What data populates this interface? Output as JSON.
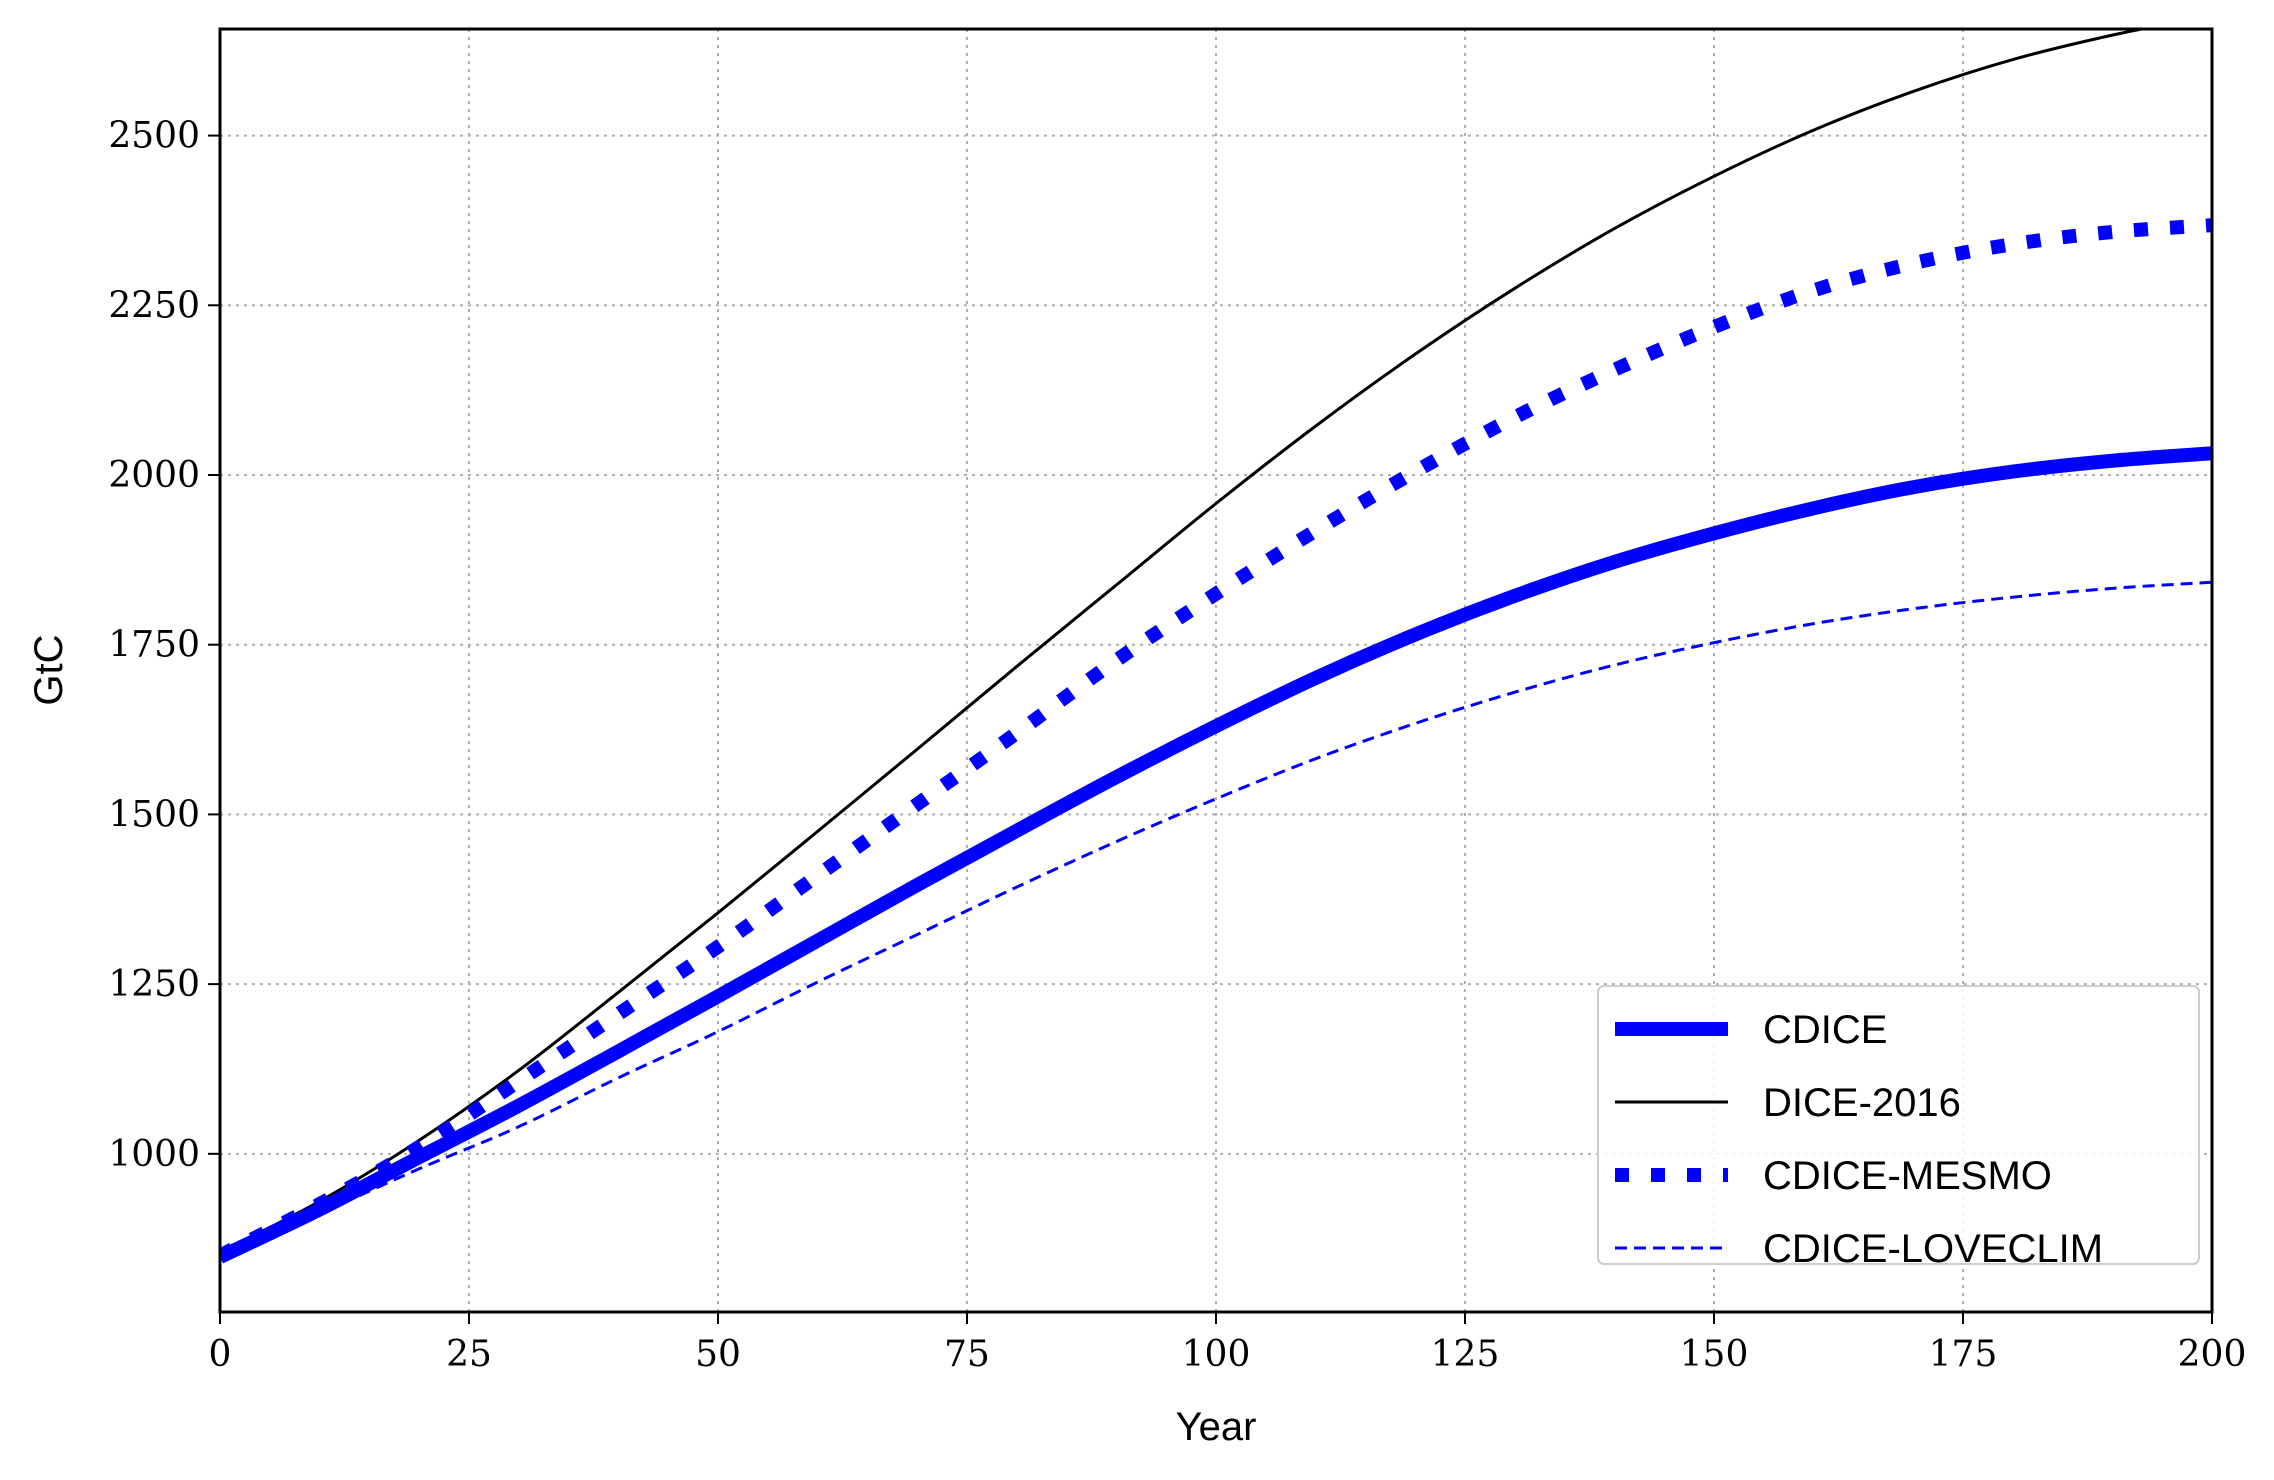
{
  "chart_data": {
    "type": "line",
    "title": "",
    "xlabel": "Year",
    "ylabel": "GtC",
    "xlim": [
      0,
      200
    ],
    "ylim": [
      767,
      2657
    ],
    "xticks": [
      0,
      25,
      50,
      75,
      100,
      125,
      150,
      175,
      200
    ],
    "yticks": [
      1000,
      1250,
      1500,
      1750,
      2000,
      2250,
      2500
    ],
    "grid": true,
    "legend_position": "lower-right",
    "series": [
      {
        "name": "CDICE",
        "color": "#0000ff",
        "style": "solid-thick",
        "x": [
          0,
          10,
          20,
          30,
          40,
          50,
          60,
          70,
          80,
          90,
          100,
          110,
          120,
          130,
          140,
          150,
          160,
          170,
          180,
          190,
          200
        ],
        "y": [
          848,
          918,
          995,
          1071,
          1151,
          1232,
          1314,
          1396,
          1476,
          1555,
          1630,
          1701,
          1765,
          1822,
          1872,
          1914,
          1951,
          1982,
          2005,
          2021,
          2032
        ]
      },
      {
        "name": "DICE-2016",
        "color": "#000000",
        "style": "solid-thin",
        "x": [
          0,
          10,
          20,
          30,
          40,
          50,
          60,
          70,
          80,
          90,
          100,
          110,
          120,
          130,
          140,
          150,
          160,
          170,
          180,
          190,
          200
        ],
        "y": [
          855,
          930,
          1020,
          1123,
          1238,
          1355,
          1475,
          1596,
          1718,
          1838,
          1958,
          2072,
          2178,
          2275,
          2363,
          2440,
          2508,
          2565,
          2612,
          2648,
          2677
        ]
      },
      {
        "name": "CDICE-MESMO",
        "color": "#0000ff",
        "style": "dotted-thick",
        "x": [
          0,
          10,
          20,
          30,
          40,
          50,
          60,
          70,
          80,
          90,
          100,
          110,
          120,
          130,
          140,
          150,
          160,
          170,
          180,
          190,
          200
        ],
        "y": [
          850,
          926,
          1010,
          1107,
          1206,
          1305,
          1410,
          1515,
          1620,
          1727,
          1825,
          1918,
          2005,
          2085,
          2155,
          2218,
          2272,
          2312,
          2340,
          2358,
          2368
        ]
      },
      {
        "name": "CDICE-LOVECLIM",
        "color": "#0000ff",
        "style": "dashed-thin",
        "x": [
          0,
          10,
          20,
          30,
          40,
          50,
          60,
          70,
          80,
          90,
          100,
          110,
          120,
          130,
          140,
          150,
          160,
          170,
          180,
          190,
          200
        ],
        "y": [
          848,
          912,
          978,
          1040,
          1112,
          1180,
          1253,
          1323,
          1393,
          1460,
          1523,
          1582,
          1634,
          1680,
          1720,
          1753,
          1781,
          1803,
          1820,
          1833,
          1842
        ]
      }
    ]
  }
}
